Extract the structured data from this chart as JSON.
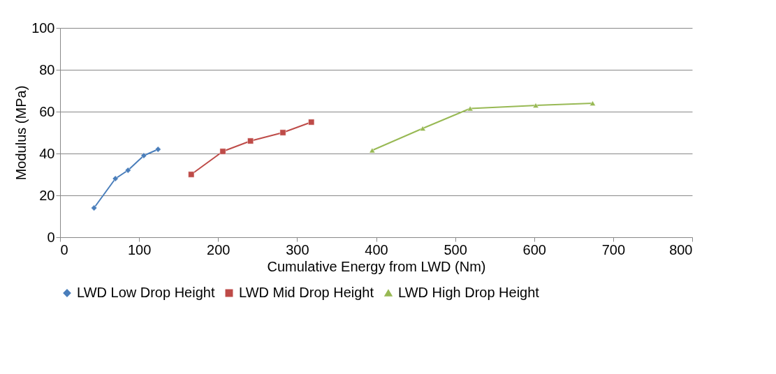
{
  "chart_data": {
    "type": "line",
    "xlabel": "Cumulative Energy from LWD (Nm)",
    "ylabel": "Modulus (MPa)",
    "xlim": [
      0,
      800
    ],
    "xticks": [
      0,
      100,
      200,
      300,
      400,
      500,
      600,
      700,
      800
    ],
    "ylim": [
      0,
      100
    ],
    "yticks": [
      0,
      20,
      40,
      60,
      80,
      100
    ],
    "grid": "y",
    "legend": "bottom",
    "line_style": "solid",
    "series": [
      {
        "name": "LWD Low Drop Height",
        "color": "#4a7ebb",
        "marker": "diamond",
        "x": [
          43,
          70,
          86,
          106,
          124
        ],
        "values": [
          14,
          28,
          32,
          39,
          42
        ]
      },
      {
        "name": "LWD Mid Drop Height",
        "color": "#be4b48",
        "marker": "square",
        "x": [
          166,
          206,
          241,
          282,
          318
        ],
        "values": [
          30,
          41,
          46,
          50,
          55
        ]
      },
      {
        "name": "LWD High Drop Height",
        "color": "#98b954",
        "marker": "triangle",
        "x": [
          395,
          459,
          519,
          602,
          674
        ],
        "values": [
          41.5,
          52,
          61.5,
          63,
          64
        ]
      }
    ]
  }
}
